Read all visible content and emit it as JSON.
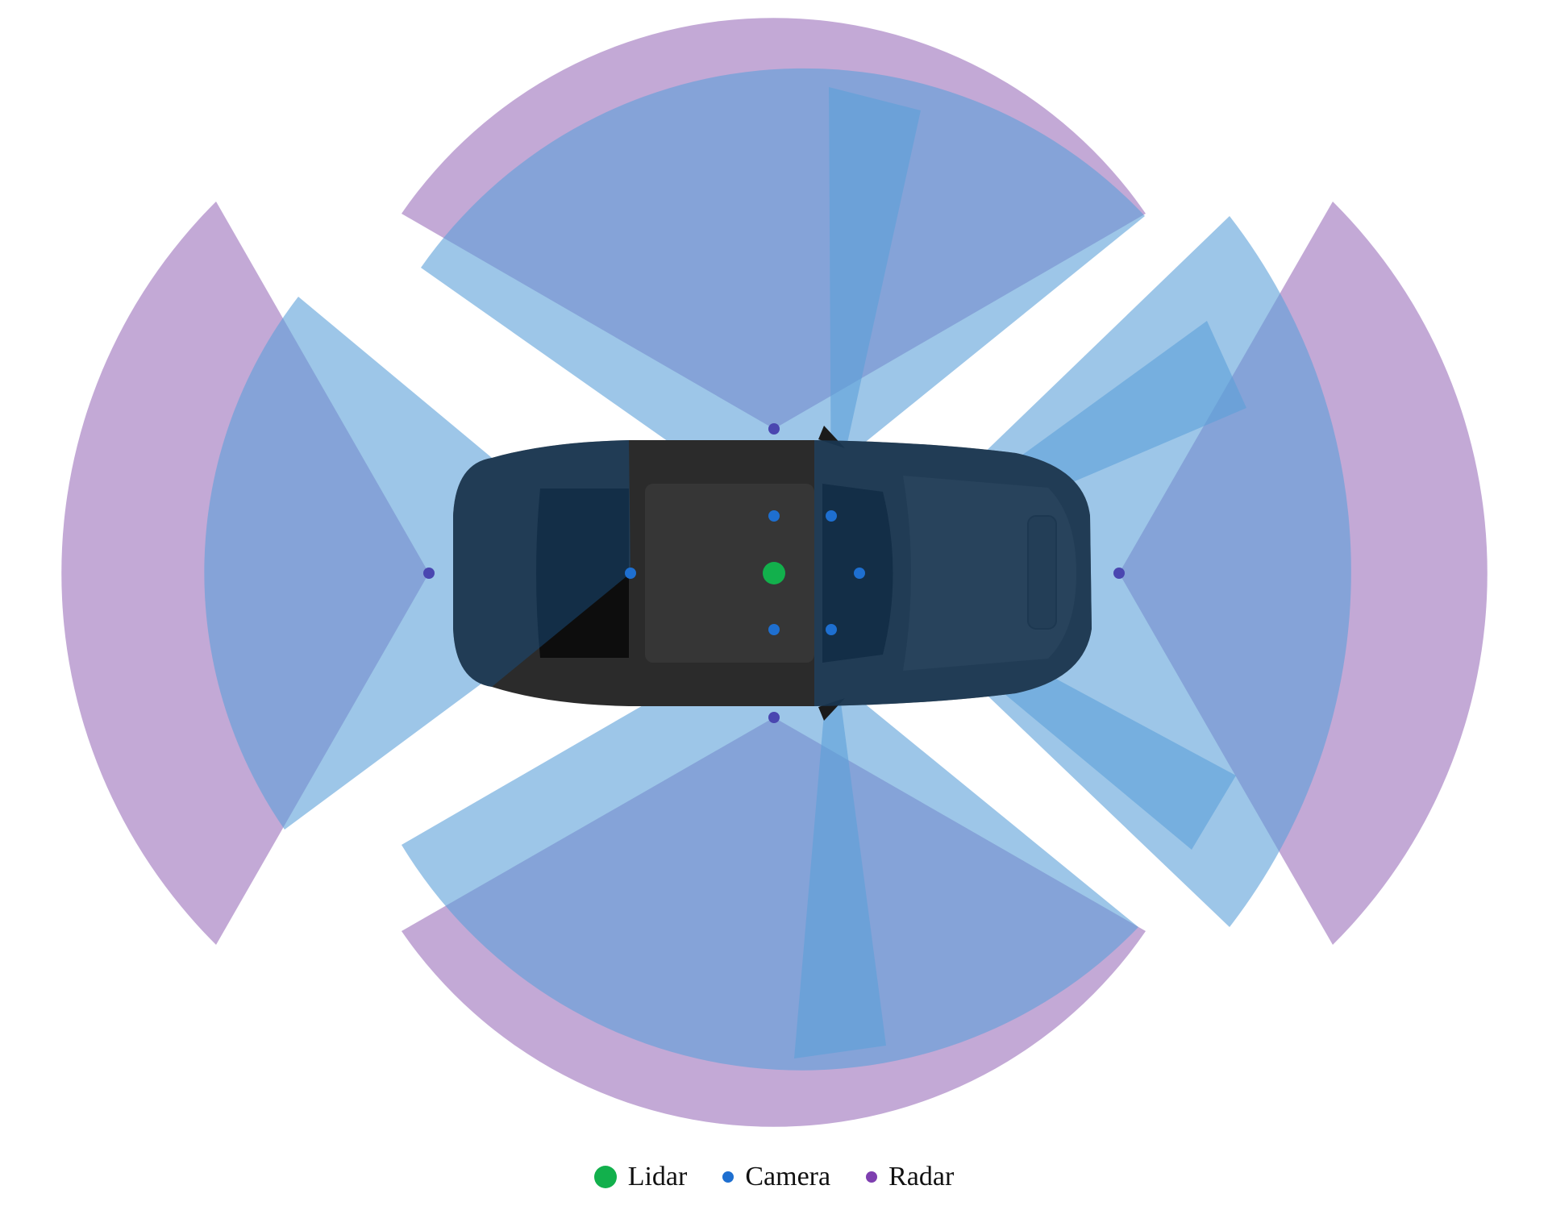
{
  "colors": {
    "radar_fill": "#9b6fbb",
    "camera_fill": "#5ca0d8",
    "car_body": "#2b2b2b",
    "lidar": "#12b04c",
    "camera_dot": "#1e6fd0",
    "radar_dot": "#4a46b0"
  },
  "legend": {
    "lidar_label": "Lidar",
    "camera_label": "Camera",
    "radar_label": "Radar",
    "lidar_icon": "green-dot",
    "camera_icon": "blue-dot",
    "radar_icon": "purple-dot"
  }
}
